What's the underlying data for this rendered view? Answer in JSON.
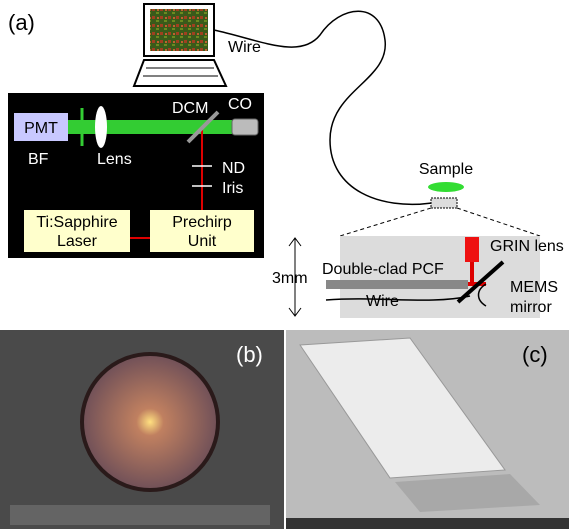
{
  "panel_a": {
    "label": "(a)",
    "wire_top": "Wire",
    "pmt": "PMT",
    "bf": "BF",
    "lens": "Lens",
    "dcm": "DCM",
    "co": "CO",
    "nd": "ND",
    "iris": "Iris",
    "laser": [
      "Ti:Sapphire",
      "Laser"
    ],
    "prechirp": [
      "Prechirp",
      "Unit"
    ],
    "sample": "Sample",
    "grin": "GRIN lens",
    "scale": "3mm",
    "pcf": "Double-clad PCF",
    "wire_probe": "Wire",
    "mems": [
      "MEMS",
      "mirror"
    ]
  },
  "panel_b": {
    "label": "(b)"
  },
  "panel_c": {
    "label": "(c)"
  }
}
